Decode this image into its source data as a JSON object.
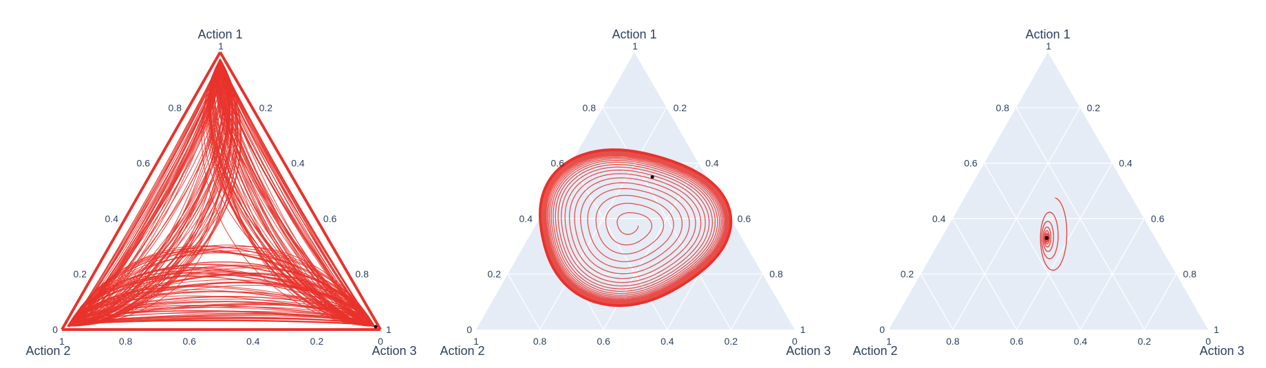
{
  "chart_data": [
    {
      "type": "ternary",
      "axes": {
        "a": "Action 1",
        "b": "Action 2",
        "c": "Action 3"
      },
      "ticks": [
        "0.2",
        "0.4",
        "0.6",
        "0.8",
        "1"
      ],
      "end_ticks": {
        "a_top": "1",
        "a_low": "0",
        "b_right": "1",
        "c_left": "0"
      },
      "background": "#ffffff",
      "grid": false,
      "line_color": "#e8322b",
      "trajectory": {
        "pattern": "heteroclinic-cycle",
        "description_points": [
          [
            0.34,
            0.33,
            0.33
          ],
          [
            0.5,
            0.12,
            0.38
          ],
          [
            0.7,
            0.18,
            0.12
          ],
          [
            0.18,
            0.55,
            0.27
          ],
          [
            0.04,
            0.9,
            0.06
          ],
          [
            0.05,
            0.05,
            0.9
          ],
          [
            0.95,
            0.03,
            0.02
          ],
          [
            0.02,
            0.97,
            0.01
          ],
          [
            0.01,
            0.02,
            0.97
          ]
        ]
      }
    },
    {
      "type": "ternary",
      "axes": {
        "a": "Action 1",
        "b": "Action 2",
        "c": "Action 3"
      },
      "ticks": [
        "0.2",
        "0.4",
        "0.6",
        "0.8",
        "1"
      ],
      "end_ticks": {
        "a_top": "1",
        "a_low": "0",
        "b_right": "1",
        "c_left": "0"
      },
      "background": "#e5ecf6",
      "grid": true,
      "line_color": "#e8322b",
      "trajectory": {
        "pattern": "outward-spiral-to-limit-cycle",
        "center": [
          0.33,
          0.34,
          0.33
        ],
        "start": [
          0.34,
          0.32,
          0.34
        ],
        "limit_cycle_points": [
          [
            0.56,
            0.22,
            0.22
          ],
          [
            0.44,
            0.18,
            0.38
          ],
          [
            0.22,
            0.28,
            0.5
          ],
          [
            0.14,
            0.44,
            0.42
          ],
          [
            0.22,
            0.54,
            0.24
          ],
          [
            0.4,
            0.42,
            0.18
          ]
        ],
        "marker": [
          0.55,
          0.17,
          0.28
        ]
      }
    },
    {
      "type": "ternary",
      "axes": {
        "a": "Action 1",
        "b": "Action 2",
        "c": "Action 3"
      },
      "ticks": [
        "0.2",
        "0.4",
        "0.6",
        "0.8",
        "1"
      ],
      "end_ticks": {
        "a_top": "1",
        "a_low": "0",
        "b_right": "1",
        "c_left": "0"
      },
      "background": "#e5ecf6",
      "grid": true,
      "line_color": "#e8322b",
      "trajectory": {
        "pattern": "inward-spiral-to-fixed-point",
        "start": [
          0.5,
          0.25,
          0.25
        ],
        "fixed_point": [
          0.33,
          0.34,
          0.33
        ],
        "marker": [
          0.33,
          0.34,
          0.33
        ]
      }
    }
  ]
}
